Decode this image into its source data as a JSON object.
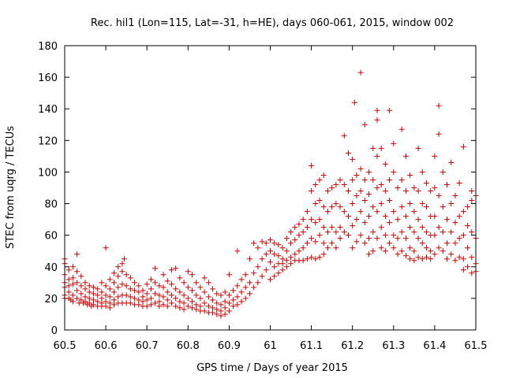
{
  "chart_data": {
    "type": "scatter",
    "title": "Rec. hil1 (Lon=115, Lat=-31, h=HE), days 060-061, 2015, window 002",
    "xlabel": "GPS time / Days of year 2015",
    "ylabel": "STEC from uqrg / TECUs",
    "xlim": [
      60.5,
      61.5
    ],
    "ylim": [
      0,
      180
    ],
    "xticks": [
      "60.5",
      "60.6",
      "60.7",
      "60.8",
      "60.9",
      "61",
      "61.1",
      "61.2",
      "61.3",
      "61.4",
      "61.5"
    ],
    "yticks": [
      "0",
      "20",
      "40",
      "60",
      "80",
      "100",
      "120",
      "140",
      "160",
      "180"
    ],
    "marker": "+",
    "color": "#cc0000",
    "grid": false,
    "legend": "none",
    "points": [
      [
        60.5,
        45
      ],
      [
        60.5,
        42
      ],
      [
        60.5,
        35
      ],
      [
        60.5,
        30
      ],
      [
        60.5,
        27
      ],
      [
        60.5,
        22
      ],
      [
        60.5,
        20
      ],
      [
        60.51,
        38
      ],
      [
        60.51,
        32
      ],
      [
        60.51,
        28
      ],
      [
        60.51,
        24
      ],
      [
        60.51,
        20
      ],
      [
        60.515,
        19
      ],
      [
        60.52,
        40
      ],
      [
        60.52,
        33
      ],
      [
        60.52,
        29
      ],
      [
        60.52,
        22
      ],
      [
        60.52,
        18
      ],
      [
        60.53,
        48
      ],
      [
        60.53,
        37
      ],
      [
        60.53,
        30
      ],
      [
        60.53,
        25
      ],
      [
        60.53,
        20
      ],
      [
        60.535,
        17
      ],
      [
        60.54,
        34
      ],
      [
        60.54,
        28
      ],
      [
        60.54,
        23
      ],
      [
        60.54,
        19
      ],
      [
        60.545,
        17
      ],
      [
        60.55,
        30
      ],
      [
        60.55,
        26
      ],
      [
        60.55,
        21
      ],
      [
        60.55,
        18
      ],
      [
        60.555,
        16
      ],
      [
        60.56,
        28
      ],
      [
        60.56,
        24
      ],
      [
        60.56,
        20
      ],
      [
        60.56,
        17
      ],
      [
        60.565,
        15
      ],
      [
        60.57,
        27
      ],
      [
        60.57,
        23
      ],
      [
        60.57,
        19
      ],
      [
        60.57,
        16
      ],
      [
        60.58,
        26
      ],
      [
        60.58,
        22
      ],
      [
        60.58,
        18
      ],
      [
        60.58,
        15
      ],
      [
        60.59,
        30
      ],
      [
        60.59,
        24
      ],
      [
        60.59,
        20
      ],
      [
        60.59,
        17
      ],
      [
        60.59,
        15
      ],
      [
        60.6,
        52
      ],
      [
        60.6,
        28
      ],
      [
        60.6,
        22
      ],
      [
        60.6,
        18
      ],
      [
        60.6,
        15
      ],
      [
        60.61,
        32
      ],
      [
        60.61,
        26
      ],
      [
        60.61,
        21
      ],
      [
        60.61,
        17
      ],
      [
        60.61,
        14
      ],
      [
        60.62,
        36
      ],
      [
        60.62,
        30
      ],
      [
        60.62,
        24
      ],
      [
        60.62,
        19
      ],
      [
        60.62,
        16
      ],
      [
        60.63,
        40
      ],
      [
        60.63,
        34
      ],
      [
        60.63,
        27
      ],
      [
        60.63,
        21
      ],
      [
        60.63,
        17
      ],
      [
        60.64,
        42
      ],
      [
        60.64,
        37
      ],
      [
        60.64,
        29
      ],
      [
        60.64,
        22
      ],
      [
        60.64,
        17
      ],
      [
        60.645,
        45
      ],
      [
        60.65,
        35
      ],
      [
        60.65,
        28
      ],
      [
        60.65,
        22
      ],
      [
        60.65,
        17
      ],
      [
        60.66,
        33
      ],
      [
        60.66,
        26
      ],
      [
        60.66,
        21
      ],
      [
        60.66,
        17
      ],
      [
        60.67,
        30
      ],
      [
        60.67,
        25
      ],
      [
        60.67,
        20
      ],
      [
        60.67,
        16
      ],
      [
        60.68,
        28
      ],
      [
        60.68,
        24
      ],
      [
        60.68,
        19
      ],
      [
        60.68,
        16
      ],
      [
        60.69,
        25
      ],
      [
        60.69,
        21
      ],
      [
        60.69,
        18
      ],
      [
        60.69,
        15
      ],
      [
        60.7,
        29
      ],
      [
        60.7,
        23
      ],
      [
        60.7,
        19
      ],
      [
        60.7,
        15
      ],
      [
        60.71,
        32
      ],
      [
        60.71,
        26
      ],
      [
        60.71,
        20
      ],
      [
        60.71,
        16
      ],
      [
        60.72,
        39
      ],
      [
        60.72,
        30
      ],
      [
        60.72,
        23
      ],
      [
        60.72,
        17
      ],
      [
        60.73,
        28
      ],
      [
        60.73,
        22
      ],
      [
        60.73,
        18
      ],
      [
        60.73,
        15
      ],
      [
        60.74,
        35
      ],
      [
        60.74,
        27
      ],
      [
        60.74,
        21
      ],
      [
        60.74,
        16
      ],
      [
        60.75,
        31
      ],
      [
        60.75,
        24
      ],
      [
        60.75,
        19
      ],
      [
        60.75,
        15
      ],
      [
        60.76,
        38
      ],
      [
        60.76,
        29
      ],
      [
        60.76,
        22
      ],
      [
        60.76,
        17
      ],
      [
        60.77,
        39
      ],
      [
        60.77,
        26
      ],
      [
        60.77,
        20
      ],
      [
        60.77,
        15
      ],
      [
        60.78,
        33
      ],
      [
        60.78,
        24
      ],
      [
        60.78,
        18
      ],
      [
        60.78,
        14
      ],
      [
        60.79,
        30
      ],
      [
        60.79,
        22
      ],
      [
        60.79,
        17
      ],
      [
        60.79,
        13
      ],
      [
        60.8,
        37
      ],
      [
        60.8,
        27
      ],
      [
        60.8,
        20
      ],
      [
        60.8,
        15
      ],
      [
        60.81,
        35
      ],
      [
        60.81,
        25
      ],
      [
        60.81,
        18
      ],
      [
        60.81,
        14
      ],
      [
        60.82,
        30
      ],
      [
        60.82,
        22
      ],
      [
        60.82,
        16
      ],
      [
        60.82,
        13
      ],
      [
        60.83,
        27
      ],
      [
        60.83,
        20
      ],
      [
        60.83,
        15
      ],
      [
        60.83,
        12
      ],
      [
        60.84,
        33
      ],
      [
        60.84,
        24
      ],
      [
        60.84,
        17
      ],
      [
        60.84,
        12
      ],
      [
        60.85,
        30
      ],
      [
        60.85,
        21
      ],
      [
        60.85,
        15
      ],
      [
        60.85,
        11
      ],
      [
        60.86,
        26
      ],
      [
        60.86,
        19
      ],
      [
        60.86,
        14
      ],
      [
        60.86,
        11
      ],
      [
        60.87,
        23
      ],
      [
        60.87,
        17
      ],
      [
        60.87,
        13
      ],
      [
        60.87,
        10
      ],
      [
        60.88,
        22
      ],
      [
        60.88,
        16
      ],
      [
        60.88,
        12
      ],
      [
        60.88,
        9
      ],
      [
        60.89,
        24
      ],
      [
        60.89,
        18
      ],
      [
        60.89,
        14
      ],
      [
        60.89,
        10
      ],
      [
        60.9,
        35
      ],
      [
        60.9,
        22
      ],
      [
        60.9,
        17
      ],
      [
        60.9,
        12
      ],
      [
        60.91,
        25
      ],
      [
        60.91,
        19
      ],
      [
        60.91,
        15
      ],
      [
        60.92,
        50
      ],
      [
        60.92,
        28
      ],
      [
        60.92,
        21
      ],
      [
        60.92,
        16
      ],
      [
        60.93,
        32
      ],
      [
        60.93,
        24
      ],
      [
        60.93,
        18
      ],
      [
        60.94,
        35
      ],
      [
        60.94,
        27
      ],
      [
        60.94,
        20
      ],
      [
        60.95,
        45
      ],
      [
        60.95,
        30
      ],
      [
        60.95,
        23
      ],
      [
        60.96,
        55
      ],
      [
        60.96,
        36
      ],
      [
        60.96,
        27
      ],
      [
        60.97,
        52
      ],
      [
        60.97,
        40
      ],
      [
        60.97,
        30
      ],
      [
        60.98,
        56
      ],
      [
        60.98,
        45
      ],
      [
        60.98,
        34
      ],
      [
        60.99,
        55
      ],
      [
        60.99,
        48
      ],
      [
        60.99,
        38
      ],
      [
        61.0,
        57
      ],
      [
        61.0,
        50
      ],
      [
        61.0,
        43
      ],
      [
        61.0,
        32
      ],
      [
        61.01,
        55
      ],
      [
        61.01,
        48
      ],
      [
        61.01,
        40
      ],
      [
        61.01,
        34
      ],
      [
        61.02,
        54
      ],
      [
        61.02,
        47
      ],
      [
        61.02,
        42
      ],
      [
        61.02,
        36
      ],
      [
        61.03,
        52
      ],
      [
        61.03,
        45
      ],
      [
        61.03,
        42
      ],
      [
        61.03,
        38
      ],
      [
        61.04,
        58
      ],
      [
        61.04,
        50
      ],
      [
        61.04,
        44
      ],
      [
        61.04,
        40
      ],
      [
        61.05,
        62
      ],
      [
        61.05,
        55
      ],
      [
        61.05,
        46
      ],
      [
        61.05,
        42
      ],
      [
        61.06,
        65
      ],
      [
        61.06,
        57
      ],
      [
        61.06,
        48
      ],
      [
        61.06,
        44
      ],
      [
        61.07,
        67
      ],
      [
        61.07,
        60
      ],
      [
        61.07,
        50
      ],
      [
        61.07,
        44
      ],
      [
        61.08,
        70
      ],
      [
        61.08,
        62
      ],
      [
        61.08,
        52
      ],
      [
        61.08,
        44
      ],
      [
        61.09,
        75
      ],
      [
        61.09,
        65
      ],
      [
        61.09,
        55
      ],
      [
        61.09,
        45
      ],
      [
        61.1,
        104
      ],
      [
        61.1,
        88
      ],
      [
        61.1,
        70
      ],
      [
        61.1,
        58
      ],
      [
        61.1,
        46
      ],
      [
        61.11,
        92
      ],
      [
        61.11,
        80
      ],
      [
        61.11,
        68
      ],
      [
        61.11,
        56
      ],
      [
        61.11,
        45
      ],
      [
        61.12,
        95
      ],
      [
        61.12,
        82
      ],
      [
        61.12,
        70
      ],
      [
        61.12,
        60
      ],
      [
        61.12,
        46
      ],
      [
        61.13,
        98
      ],
      [
        61.13,
        78
      ],
      [
        61.13,
        65
      ],
      [
        61.13,
        55
      ],
      [
        61.13,
        48
      ],
      [
        61.14,
        88
      ],
      [
        61.14,
        75
      ],
      [
        61.14,
        62
      ],
      [
        61.14,
        52
      ],
      [
        61.15,
        90
      ],
      [
        61.15,
        78
      ],
      [
        61.15,
        65
      ],
      [
        61.15,
        55
      ],
      [
        61.16,
        92
      ],
      [
        61.16,
        80
      ],
      [
        61.16,
        62
      ],
      [
        61.16,
        52
      ],
      [
        61.17,
        95
      ],
      [
        61.17,
        78
      ],
      [
        61.17,
        65
      ],
      [
        61.17,
        58
      ],
      [
        61.18,
        123
      ],
      [
        61.18,
        92
      ],
      [
        61.18,
        75
      ],
      [
        61.18,
        62
      ],
      [
        61.19,
        112
      ],
      [
        61.19,
        88
      ],
      [
        61.19,
        72
      ],
      [
        61.19,
        60
      ],
      [
        61.2,
        108
      ],
      [
        61.2,
        95
      ],
      [
        61.2,
        80
      ],
      [
        61.2,
        66
      ],
      [
        61.2,
        52
      ],
      [
        61.205,
        144
      ],
      [
        61.21,
        98
      ],
      [
        61.21,
        85
      ],
      [
        61.21,
        70
      ],
      [
        61.21,
        56
      ],
      [
        61.22,
        163
      ],
      [
        61.22,
        102
      ],
      [
        61.22,
        88
      ],
      [
        61.22,
        75
      ],
      [
        61.22,
        60
      ],
      [
        61.23,
        130
      ],
      [
        61.23,
        95
      ],
      [
        61.23,
        82
      ],
      [
        61.23,
        68
      ],
      [
        61.23,
        55
      ],
      [
        61.24,
        100
      ],
      [
        61.24,
        86
      ],
      [
        61.24,
        72
      ],
      [
        61.24,
        58
      ],
      [
        61.24,
        48
      ],
      [
        61.25,
        115
      ],
      [
        61.25,
        95
      ],
      [
        61.25,
        78
      ],
      [
        61.25,
        62
      ],
      [
        61.25,
        50
      ],
      [
        61.26,
        139
      ],
      [
        61.26,
        133
      ],
      [
        61.26,
        110
      ],
      [
        61.26,
        90
      ],
      [
        61.26,
        75
      ],
      [
        61.26,
        58
      ],
      [
        61.27,
        115
      ],
      [
        61.27,
        92
      ],
      [
        61.27,
        80
      ],
      [
        61.27,
        65
      ],
      [
        61.27,
        52
      ],
      [
        61.28,
        105
      ],
      [
        61.28,
        88
      ],
      [
        61.28,
        72
      ],
      [
        61.28,
        60
      ],
      [
        61.28,
        50
      ],
      [
        61.29,
        139
      ],
      [
        61.29,
        95
      ],
      [
        61.29,
        82
      ],
      [
        61.29,
        68
      ],
      [
        61.29,
        55
      ],
      [
        61.3,
        118
      ],
      [
        61.3,
        100
      ],
      [
        61.3,
        75
      ],
      [
        61.3,
        60
      ],
      [
        61.3,
        52
      ],
      [
        61.31,
        90
      ],
      [
        61.31,
        70
      ],
      [
        61.31,
        58
      ],
      [
        61.31,
        48
      ],
      [
        61.32,
        127
      ],
      [
        61.32,
        95
      ],
      [
        61.32,
        78
      ],
      [
        61.32,
        62
      ],
      [
        61.32,
        50
      ],
      [
        61.33,
        110
      ],
      [
        61.33,
        88
      ],
      [
        61.33,
        72
      ],
      [
        61.33,
        58
      ],
      [
        61.33,
        47
      ],
      [
        61.34,
        98
      ],
      [
        61.34,
        80
      ],
      [
        61.34,
        65
      ],
      [
        61.34,
        52
      ],
      [
        61.34,
        45
      ],
      [
        61.35,
        90
      ],
      [
        61.35,
        75
      ],
      [
        61.35,
        62
      ],
      [
        61.35,
        50
      ],
      [
        61.35,
        44
      ],
      [
        61.36,
        115
      ],
      [
        61.36,
        88
      ],
      [
        61.36,
        70
      ],
      [
        61.36,
        58
      ],
      [
        61.36,
        46
      ],
      [
        61.37,
        100
      ],
      [
        61.37,
        80
      ],
      [
        61.37,
        65
      ],
      [
        61.37,
        55
      ],
      [
        61.37,
        45
      ],
      [
        61.38,
        93
      ],
      [
        61.38,
        78
      ],
      [
        61.38,
        62
      ],
      [
        61.38,
        52
      ],
      [
        61.38,
        46
      ],
      [
        61.39,
        88
      ],
      [
        61.39,
        72
      ],
      [
        61.39,
        60
      ],
      [
        61.39,
        50
      ],
      [
        61.39,
        45
      ],
      [
        61.4,
        110
      ],
      [
        61.4,
        90
      ],
      [
        61.4,
        72
      ],
      [
        61.4,
        60
      ],
      [
        61.4,
        48
      ],
      [
        61.41,
        142
      ],
      [
        61.41,
        124
      ],
      [
        61.41,
        85
      ],
      [
        61.41,
        65
      ],
      [
        61.41,
        52
      ],
      [
        61.42,
        100
      ],
      [
        61.42,
        78
      ],
      [
        61.42,
        62
      ],
      [
        61.42,
        50
      ],
      [
        61.43,
        92
      ],
      [
        61.43,
        70
      ],
      [
        61.43,
        55
      ],
      [
        61.43,
        45
      ],
      [
        61.44,
        106
      ],
      [
        61.44,
        80
      ],
      [
        61.44,
        62
      ],
      [
        61.44,
        48
      ],
      [
        61.45,
        85
      ],
      [
        61.45,
        68
      ],
      [
        61.45,
        55
      ],
      [
        61.45,
        44
      ],
      [
        61.46,
        93
      ],
      [
        61.46,
        72
      ],
      [
        61.46,
        58
      ],
      [
        61.46,
        46
      ],
      [
        61.47,
        116
      ],
      [
        61.47,
        75
      ],
      [
        61.47,
        60
      ],
      [
        61.47,
        45
      ],
      [
        61.47,
        38
      ],
      [
        61.48,
        78
      ],
      [
        61.48,
        66
      ],
      [
        61.48,
        52
      ],
      [
        61.48,
        40
      ],
      [
        61.49,
        88
      ],
      [
        61.49,
        82
      ],
      [
        61.49,
        62
      ],
      [
        61.49,
        46
      ],
      [
        61.49,
        36
      ],
      [
        61.5,
        85
      ],
      [
        61.5,
        58
      ],
      [
        61.5,
        42
      ],
      [
        61.5,
        37
      ]
    ]
  }
}
